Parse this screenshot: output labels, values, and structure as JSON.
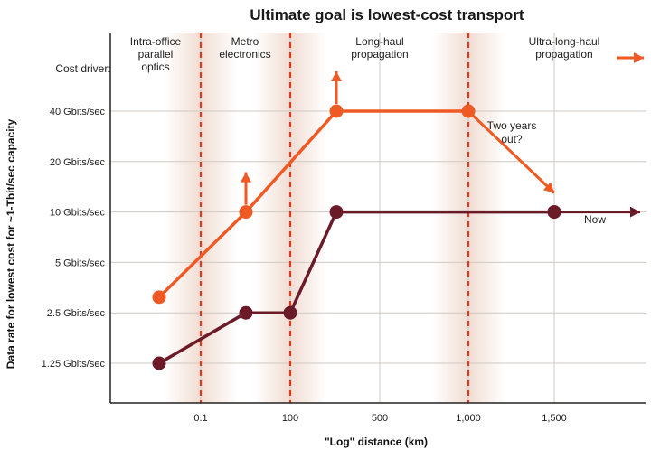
{
  "chart_data": {
    "type": "line",
    "title": "Ultimate goal is lowest-cost transport",
    "xlabel": "\"Log\" distance (km)",
    "ylabel": "Data rate for lowest cost for ~1-Tbit/sec capacity",
    "x_tick_labels": [
      "0.1",
      "100",
      "500",
      "1,000",
      "1,500"
    ],
    "y_tick_labels": [
      "1.25 Gbits/sec",
      "2.5 Gbits/sec",
      "5 Gbits/sec",
      "10 Gbits/sec",
      "20 Gbits/sec",
      "40 Gbits/sec"
    ],
    "y_scale": "log",
    "cost_driver_label": "Cost driver:",
    "regions": [
      {
        "label": [
          "Intra-office",
          "parallel",
          "optics"
        ]
      },
      {
        "label": [
          "Metro",
          "electronics"
        ]
      },
      {
        "label": [
          "Long-haul",
          "propagation"
        ]
      },
      {
        "label": [
          "Ultra-long-haul",
          "propagation"
        ]
      }
    ],
    "series": [
      {
        "name": "Two years out?",
        "label_lines": [
          "Two years",
          "out?"
        ],
        "color": "#ef5a24",
        "points": [
          {
            "x": 0.03,
            "y": 3.1
          },
          {
            "x": 30,
            "y": 10
          },
          {
            "x": 200,
            "y": 40
          },
          {
            "x": 1000,
            "y": 40
          }
        ],
        "arrow_to": {
          "x": 1500,
          "y": 13
        }
      },
      {
        "name": "Now",
        "label_lines": [
          "Now"
        ],
        "color": "#6b1a28",
        "points": [
          {
            "x": 0.03,
            "y": 1.25
          },
          {
            "x": 30,
            "y": 2.5
          },
          {
            "x": 100,
            "y": 2.5
          },
          {
            "x": 200,
            "y": 10
          },
          {
            "x": 1500,
            "y": 10
          }
        ],
        "arrow_to": {
          "x": 2000,
          "y": 10
        }
      }
    ],
    "colors": {
      "accent": "#ef5a24",
      "now_line": "#6b1a28",
      "divider": "#e03a1e",
      "grid": "#cfc9c4",
      "background_shade": "#f3e4dc"
    }
  }
}
